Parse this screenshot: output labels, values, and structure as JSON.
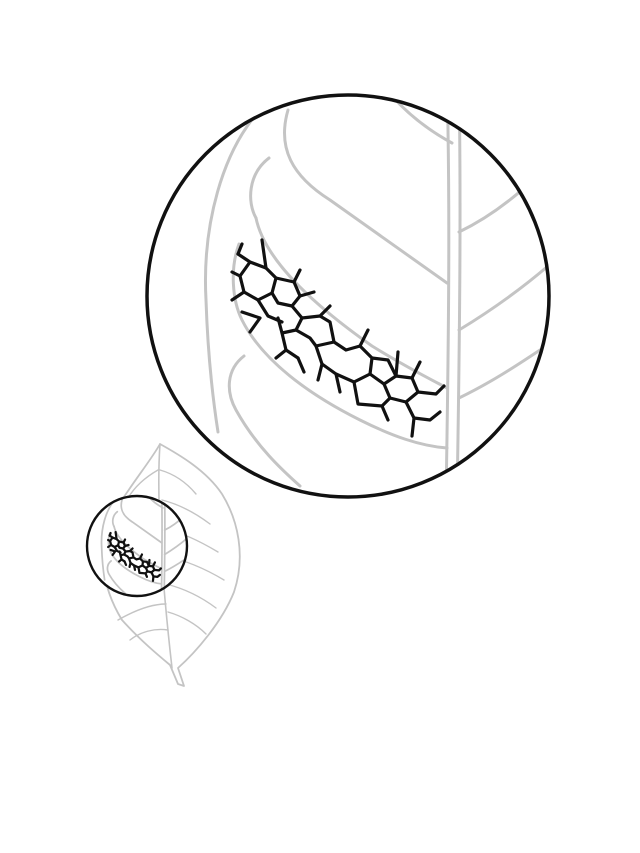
{
  "illustration": {
    "subject": "leaf-venation-magnified",
    "colors": {
      "background": "#ffffff",
      "leaf_outline": "#c4c4c4",
      "network": "#111111",
      "lens_ring": "#111111"
    }
  }
}
